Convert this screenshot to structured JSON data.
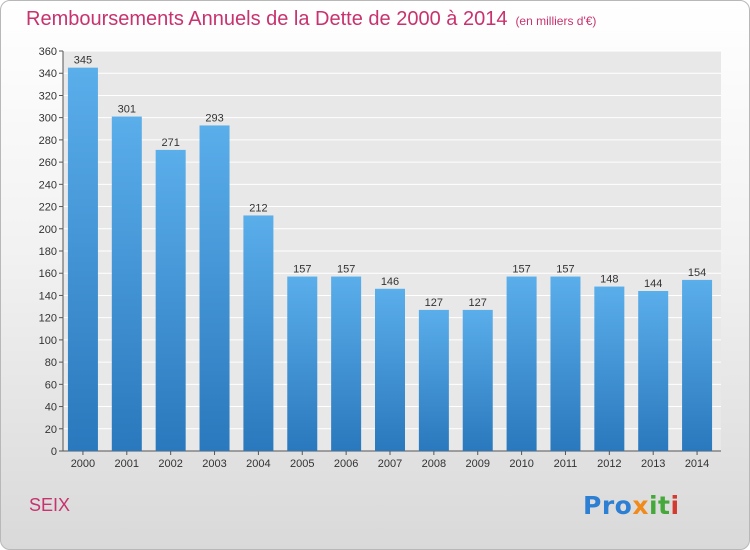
{
  "chart_data": {
    "type": "bar",
    "title": "Remboursements Annuels de la Dette de 2000 à 2014",
    "unit": "(en milliers d'€)",
    "categories": [
      "2000",
      "2001",
      "2002",
      "2003",
      "2004",
      "2005",
      "2006",
      "2007",
      "2008",
      "2009",
      "2010",
      "2011",
      "2012",
      "2013",
      "2014"
    ],
    "values": [
      345,
      301,
      271,
      293,
      212,
      157,
      157,
      146,
      127,
      127,
      157,
      157,
      148,
      144,
      154
    ],
    "ylim": [
      0,
      360
    ],
    "ytick_step": 20,
    "grid": true,
    "bar_color_top": "#5aaeea",
    "bar_color_bottom": "#2a78bd"
  },
  "commune": "SEIX",
  "logo": {
    "text": "Proxiti",
    "parts": [
      "Pro",
      "x",
      "it",
      "i"
    ]
  }
}
